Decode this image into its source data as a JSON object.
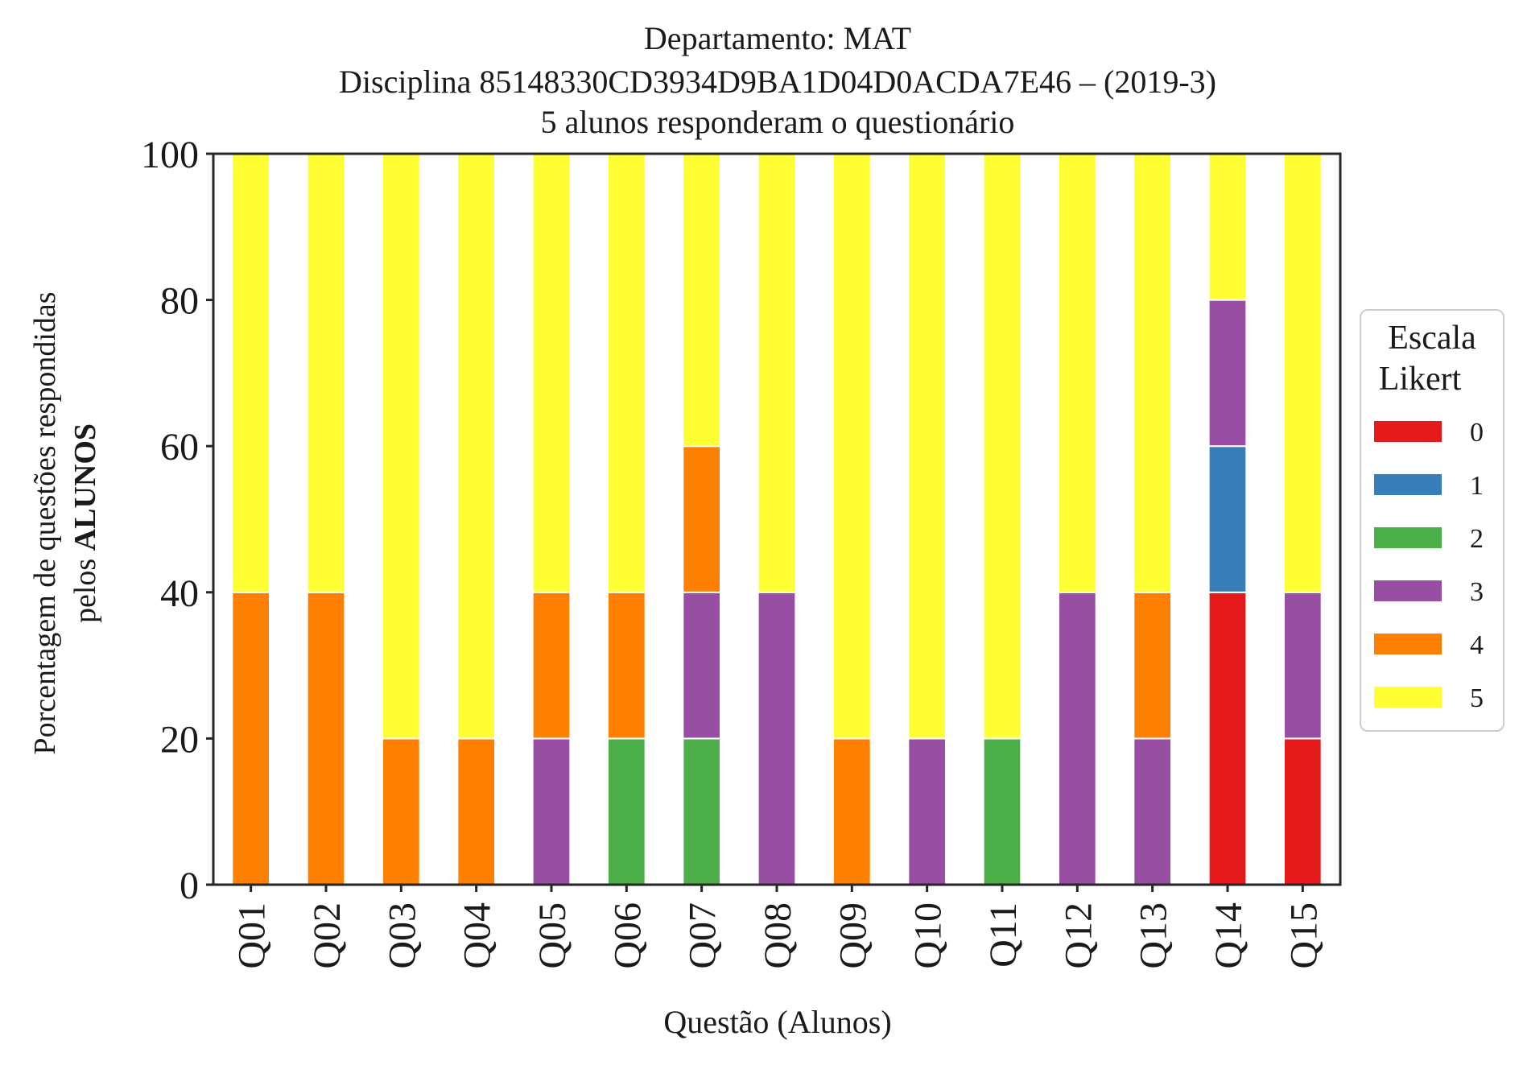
{
  "chart_data": {
    "type": "bar",
    "stacked": true,
    "title_lines": [
      "Departamento: MAT",
      "Disciplina 85148330CD3934D9BA1D04D0ACDA7E46 – (2019-3)",
      "5 alunos responderam o questionário"
    ],
    "xlabel": "Questão (Alunos)",
    "ylabel_line1": "Porcentagem de questões respondidas",
    "ylabel_line2_prefix": "pelos ",
    "ylabel_line2_bold": "ALUNOS",
    "ylim": [
      0,
      100
    ],
    "yticks": [
      "0",
      "20",
      "40",
      "60",
      "80",
      "100"
    ],
    "categories": [
      "Q01",
      "Q02",
      "Q03",
      "Q04",
      "Q05",
      "Q06",
      "Q07",
      "Q08",
      "Q09",
      "Q10",
      "Q11",
      "Q12",
      "Q13",
      "Q14",
      "Q15"
    ],
    "series": [
      {
        "name": "0",
        "color": "#e41a1c",
        "values": [
          0,
          0,
          0,
          0,
          0,
          0,
          0,
          0,
          0,
          0,
          0,
          0,
          0,
          40,
          20
        ]
      },
      {
        "name": "1",
        "color": "#377eb8",
        "values": [
          0,
          0,
          0,
          0,
          0,
          0,
          0,
          0,
          0,
          0,
          0,
          0,
          0,
          20,
          0
        ]
      },
      {
        "name": "2",
        "color": "#4daf4a",
        "values": [
          0,
          0,
          0,
          0,
          0,
          20,
          20,
          0,
          0,
          0,
          20,
          0,
          0,
          0,
          0
        ]
      },
      {
        "name": "3",
        "color": "#984ea3",
        "values": [
          0,
          0,
          0,
          0,
          20,
          0,
          20,
          40,
          0,
          20,
          0,
          40,
          20,
          20,
          20
        ]
      },
      {
        "name": "4",
        "color": "#ff7f00",
        "values": [
          40,
          40,
          20,
          20,
          20,
          20,
          20,
          0,
          20,
          0,
          0,
          0,
          20,
          0,
          0
        ]
      },
      {
        "name": "5",
        "color": "#ffff33",
        "values": [
          60,
          60,
          80,
          80,
          60,
          60,
          40,
          60,
          80,
          80,
          80,
          60,
          60,
          20,
          60
        ]
      }
    ],
    "legend": {
      "title_lines": [
        "Escala",
        "Likert"
      ],
      "placement": "right"
    },
    "grid": false
  }
}
